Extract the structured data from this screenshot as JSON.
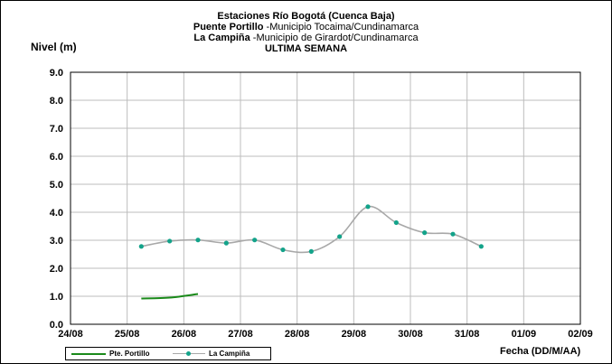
{
  "chart_data": {
    "type": "line",
    "title_lines": [
      {
        "bold": "Estaciones Río Bogotá (Cuenca Baja)",
        "rest": ""
      },
      {
        "bold": "Puente Portillo",
        "rest": " -Municipio Tocaima/Cundinamarca"
      },
      {
        "bold": "La Campiña",
        "rest": " -Municipio de Girardot/Cundinamarca"
      },
      {
        "bold": "ULTIMA SEMANA",
        "rest": ""
      }
    ],
    "ylabel": "Nivel (m)",
    "xlabel": "Fecha (DD/M/AA)",
    "ylim": [
      0,
      9
    ],
    "yticks": [
      "0.0",
      "1.0",
      "2.0",
      "3.0",
      "4.0",
      "5.0",
      "6.0",
      "7.0",
      "8.0",
      "9.0"
    ],
    "xticks": [
      "24/08",
      "25/08",
      "26/08",
      "27/08",
      "28/08",
      "29/08",
      "30/08",
      "31/08",
      "01/09",
      "02/09"
    ],
    "grid": true,
    "legend_position": "bottom-left",
    "series": [
      {
        "name": "Pte. Portillo",
        "color": "#1a8a1a",
        "markers": false,
        "x": [
          1.25,
          1.75,
          2.25
        ],
        "y": [
          0.92,
          0.95,
          1.08
        ]
      },
      {
        "name": "La Campiña",
        "color": "#a8a8a8",
        "marker_color": "#13a38a",
        "markers": true,
        "x": [
          1.25,
          1.75,
          2.25,
          2.75,
          3.25,
          3.75,
          4.25,
          4.75,
          5.25,
          5.75,
          6.25,
          6.75,
          7.25
        ],
        "y": [
          2.78,
          2.97,
          3.01,
          2.9,
          3.01,
          2.66,
          2.6,
          3.13,
          4.2,
          3.63,
          3.27,
          3.22,
          2.78
        ]
      }
    ]
  }
}
